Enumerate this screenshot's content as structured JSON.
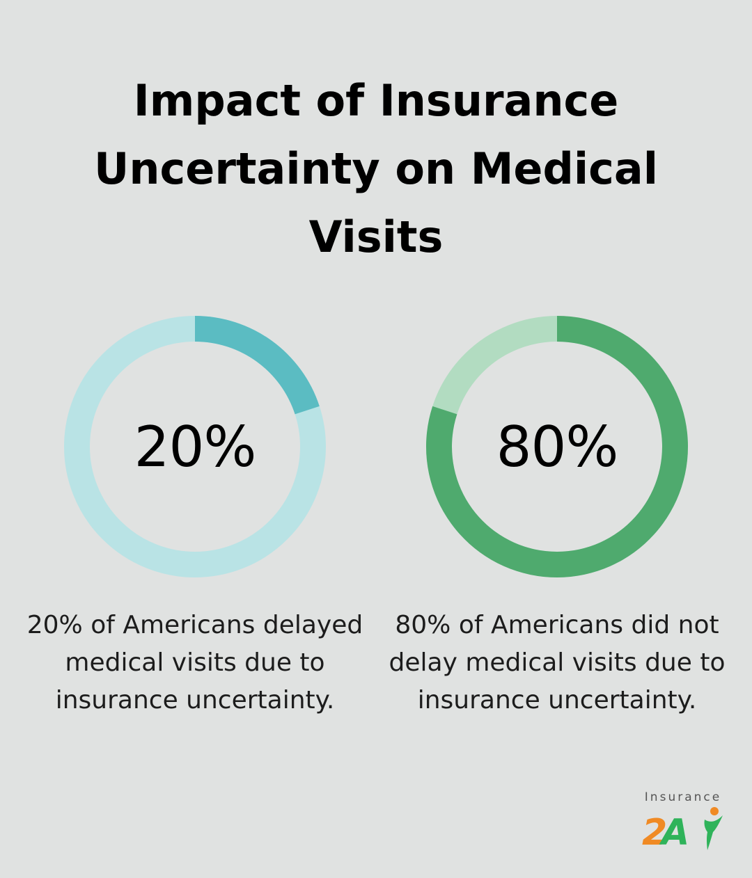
{
  "title": "Impact of Insurance Uncertainty on Medical Visits",
  "chart_data": [
    {
      "type": "pie",
      "style": "donut",
      "value": 20,
      "total": 100,
      "center_label": "20%",
      "caption": "20% of Americans delayed medical visits due to insurance uncertainty.",
      "colors": {
        "filled": "#5bbcc2",
        "remainder": "#b9e3e5"
      }
    },
    {
      "type": "pie",
      "style": "donut",
      "value": 80,
      "total": 100,
      "center_label": "80%",
      "caption": "80% of Americans did not delay medical visits due to insurance uncertainty.",
      "colors": {
        "filled": "#4faa6e",
        "remainder": "#b2dcc1"
      }
    }
  ],
  "logo": {
    "text": "Insurance",
    "mark_text": "2A",
    "colors": {
      "two": "#f08a24",
      "a": "#2fb35a",
      "figure": "#2fb35a",
      "figure_head": "#f08a24"
    }
  }
}
